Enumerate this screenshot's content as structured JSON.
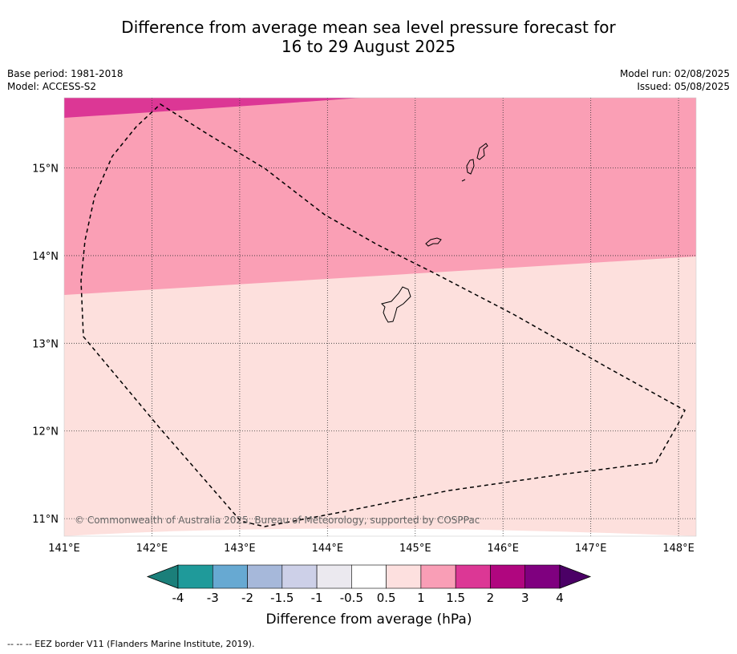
{
  "title": {
    "line1": "Difference from average mean sea level pressure forecast for",
    "line2": "16 to 29 August 2025"
  },
  "meta_left": {
    "base_period": "Base period: 1981-2018",
    "model": "Model: ACCESS-S2"
  },
  "meta_right": {
    "model_run": "Model run: 02/08/2025",
    "issued": "Issued: 05/08/2025"
  },
  "map": {
    "lon_range": [
      141.0,
      148.2
    ],
    "lat_range": [
      10.8,
      15.8
    ],
    "lon_ticks": [
      "141°E",
      "142°E",
      "143°E",
      "144°E",
      "145°E",
      "146°E",
      "147°E",
      "148°E"
    ],
    "lat_ticks": [
      "15°N",
      "14°N",
      "13°N",
      "12°N",
      "11°N"
    ],
    "gridlines": true,
    "copyright": "© Commonwealth of Australia 2025, Bureau of Meteorology, supported by COSPPac"
  },
  "colorbar": {
    "label": "Difference from average (hPa)",
    "ticks": [
      "-4",
      "-3",
      "-2",
      "-1.5",
      "-1",
      "-0.5",
      "0.5",
      "1",
      "1.5",
      "2",
      "3",
      "4"
    ],
    "colors": [
      "#1b7f7a",
      "#1f9a9a",
      "#67a9d2",
      "#a6b8da",
      "#cdd0e8",
      "#ebe9ef",
      "#ffffff",
      "#fde0df",
      "#f99eb6",
      "#dc3795",
      "#b0067f",
      "#7f007f",
      "#4b0066"
    ]
  },
  "regions": {
    "high_color": "#dc3795",
    "mid_color": "#fa9fb5",
    "low_color": "#fde0dd"
  },
  "legend_note": "--  --  -- EEZ border V11 (Flanders Marine Institute, 2019)."
}
